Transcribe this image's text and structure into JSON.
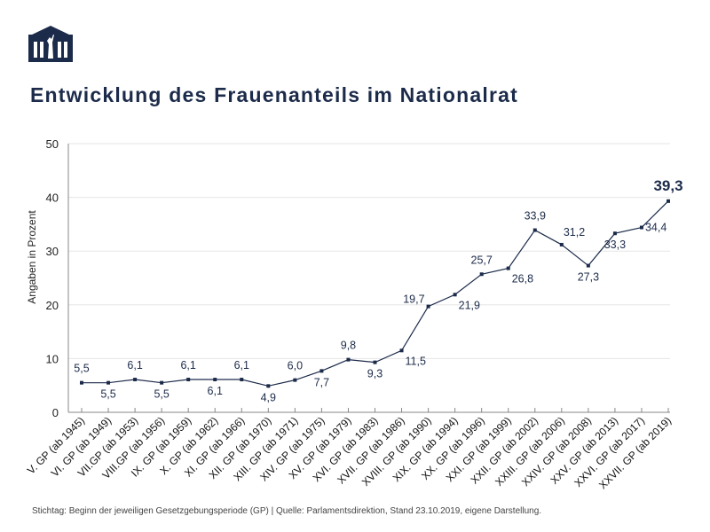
{
  "title": "Entwicklung des Frauenanteils im Nationalrat",
  "source": "Stichtag: Beginn der jeweiligen Gesetzgebungsperiode (GP) | Quelle: Parlamentsdirektion, Stand 23.10.2019, eigene Darstellung.",
  "logo": "parliament-logo",
  "colors": {
    "line": "#1c2b4a",
    "grid": "#e6e6e6",
    "axis": "#888888"
  },
  "chart_data": {
    "type": "line",
    "title": "Entwicklung des Frauenanteils im Nationalrat",
    "ylabel": "Angaben in Prozent",
    "xlabel": "",
    "ylim": [
      0,
      50
    ],
    "yticks": [
      0,
      10,
      20,
      30,
      40,
      50
    ],
    "grid": true,
    "categories": [
      "V. GP (ab 1945)",
      "VI. GP (ab 1949)",
      "VII.GP (ab 1953)",
      "VIII.GP (ab 1956)",
      "IX. GP (ab 1959)",
      "X. GP (ab 1962)",
      "XI. GP (ab 1966)",
      "XII. GP (ab 1970)",
      "XIII. GP (ab 1971)",
      "XIV. GP (ab 1975)",
      "XV. GP (ab 1979)",
      "XVI. GP (ab 1983)",
      "XVII. GP (ab 1986)",
      "XVIII. GP (ab 1990)",
      "XIX. GP (ab 1994)",
      "XX. GP (ab 1996)",
      "XXI. GP (ab 1999)",
      "XXII. GP (ab 2002)",
      "XXIII. GP (ab 2006)",
      "XXIV. GP (ab 2008)",
      "XXV. GP (ab 2013)",
      "XXVI. GP (ab 2017)",
      "XXVII. GP (ab 2019)"
    ],
    "values": [
      5.5,
      5.5,
      6.1,
      5.5,
      6.1,
      6.1,
      6.1,
      4.9,
      6.0,
      7.7,
      9.8,
      9.3,
      11.5,
      19.7,
      21.9,
      25.7,
      26.8,
      33.9,
      31.2,
      27.3,
      33.3,
      34.4,
      39.3
    ],
    "labels": [
      "5,5",
      "5,5",
      "6,1",
      "5,5",
      "6,1",
      "6,1",
      "6,1",
      "4,9",
      "6,0",
      "7,7",
      "9,8",
      "9,3",
      "11,5",
      "19,7",
      "21,9",
      "25,7",
      "26,8",
      "33,9",
      "31,2",
      "27,3",
      "33,3",
      "34,4",
      "39,3"
    ]
  }
}
